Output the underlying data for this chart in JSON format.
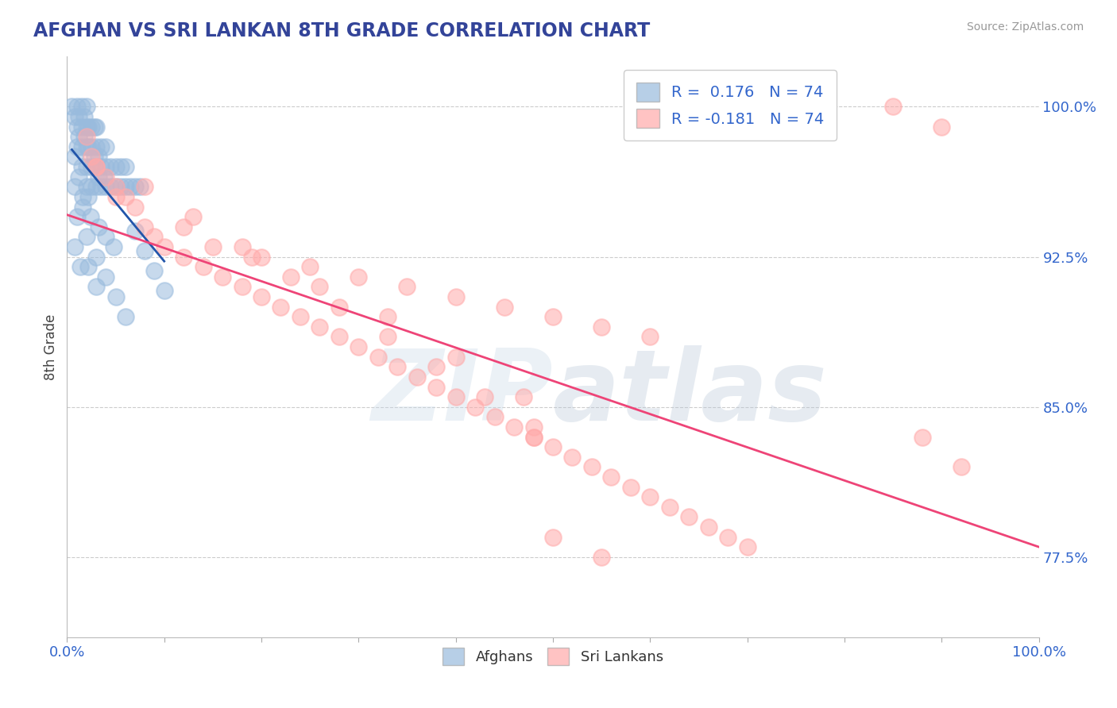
{
  "title": "AFGHAN VS SRI LANKAN 8TH GRADE CORRELATION CHART",
  "source_text": "Source: ZipAtlas.com",
  "ylabel": "8th Grade",
  "xlim": [
    0.0,
    1.0
  ],
  "ylim": [
    0.735,
    1.025
  ],
  "yticks": [
    0.775,
    0.85,
    0.925,
    1.0
  ],
  "ytick_labels": [
    "77.5%",
    "85.0%",
    "92.5%",
    "100.0%"
  ],
  "blue_R": 0.176,
  "pink_R": -0.181,
  "N": 74,
  "blue_color": "#99BBDD",
  "pink_color": "#FFAAAA",
  "blue_line_color": "#2255AA",
  "pink_line_color": "#EE4477",
  "title_color": "#334499",
  "axis_label_color": "#444444",
  "tick_color": "#3366CC",
  "watermark_zip_color": "#BBCCDD",
  "watermark_atlas_color": "#AABBCC",
  "background_color": "#FFFFFF",
  "grid_color": "#CCCCCC",
  "afghans_x": [
    0.005,
    0.01,
    0.01,
    0.01,
    0.015,
    0.015,
    0.015,
    0.015,
    0.02,
    0.02,
    0.02,
    0.02,
    0.02,
    0.025,
    0.025,
    0.025,
    0.025,
    0.03,
    0.03,
    0.03,
    0.03,
    0.035,
    0.035,
    0.035,
    0.04,
    0.04,
    0.04,
    0.045,
    0.045,
    0.05,
    0.05,
    0.055,
    0.055,
    0.06,
    0.06,
    0.065,
    0.07,
    0.075,
    0.008,
    0.012,
    0.012,
    0.018,
    0.018,
    0.022,
    0.022,
    0.028,
    0.028,
    0.032,
    0.032,
    0.038,
    0.008,
    0.012,
    0.016,
    0.022,
    0.008,
    0.016,
    0.024,
    0.032,
    0.04,
    0.048,
    0.01,
    0.02,
    0.03,
    0.04,
    0.05,
    0.06,
    0.07,
    0.08,
    0.09,
    0.1,
    0.008,
    0.014,
    0.022,
    0.03
  ],
  "afghans_y": [
    1.0,
    1.0,
    0.99,
    0.98,
    1.0,
    0.99,
    0.98,
    0.97,
    1.0,
    0.99,
    0.98,
    0.97,
    0.96,
    0.99,
    0.98,
    0.97,
    0.96,
    0.99,
    0.98,
    0.97,
    0.96,
    0.98,
    0.97,
    0.96,
    0.98,
    0.97,
    0.96,
    0.97,
    0.96,
    0.97,
    0.96,
    0.97,
    0.96,
    0.97,
    0.96,
    0.96,
    0.96,
    0.96,
    0.995,
    0.995,
    0.985,
    0.995,
    0.985,
    0.99,
    0.98,
    0.99,
    0.975,
    0.975,
    0.965,
    0.965,
    0.975,
    0.965,
    0.955,
    0.955,
    0.96,
    0.95,
    0.945,
    0.94,
    0.935,
    0.93,
    0.945,
    0.935,
    0.925,
    0.915,
    0.905,
    0.895,
    0.938,
    0.928,
    0.918,
    0.908,
    0.93,
    0.92,
    0.92,
    0.91
  ],
  "srilankans_x": [
    0.02,
    0.025,
    0.03,
    0.04,
    0.05,
    0.06,
    0.07,
    0.08,
    0.09,
    0.1,
    0.12,
    0.14,
    0.16,
    0.18,
    0.2,
    0.22,
    0.24,
    0.26,
    0.28,
    0.3,
    0.32,
    0.34,
    0.36,
    0.38,
    0.4,
    0.42,
    0.44,
    0.46,
    0.48,
    0.5,
    0.52,
    0.54,
    0.56,
    0.58,
    0.6,
    0.62,
    0.64,
    0.66,
    0.68,
    0.7,
    0.15,
    0.2,
    0.25,
    0.3,
    0.35,
    0.4,
    0.45,
    0.5,
    0.55,
    0.6,
    0.03,
    0.08,
    0.13,
    0.18,
    0.23,
    0.28,
    0.33,
    0.38,
    0.43,
    0.48,
    0.05,
    0.12,
    0.19,
    0.26,
    0.33,
    0.4,
    0.47,
    0.48,
    0.85,
    0.9,
    0.88,
    0.92,
    0.5,
    0.55
  ],
  "srilankans_y": [
    0.985,
    0.975,
    0.97,
    0.965,
    0.96,
    0.955,
    0.95,
    0.94,
    0.935,
    0.93,
    0.925,
    0.92,
    0.915,
    0.91,
    0.905,
    0.9,
    0.895,
    0.89,
    0.885,
    0.88,
    0.875,
    0.87,
    0.865,
    0.86,
    0.855,
    0.85,
    0.845,
    0.84,
    0.835,
    0.83,
    0.825,
    0.82,
    0.815,
    0.81,
    0.805,
    0.8,
    0.795,
    0.79,
    0.785,
    0.78,
    0.93,
    0.925,
    0.92,
    0.915,
    0.91,
    0.905,
    0.9,
    0.895,
    0.89,
    0.885,
    0.97,
    0.96,
    0.945,
    0.93,
    0.915,
    0.9,
    0.885,
    0.87,
    0.855,
    0.84,
    0.955,
    0.94,
    0.925,
    0.91,
    0.895,
    0.875,
    0.855,
    0.835,
    1.0,
    0.99,
    0.835,
    0.82,
    0.785,
    0.775
  ]
}
